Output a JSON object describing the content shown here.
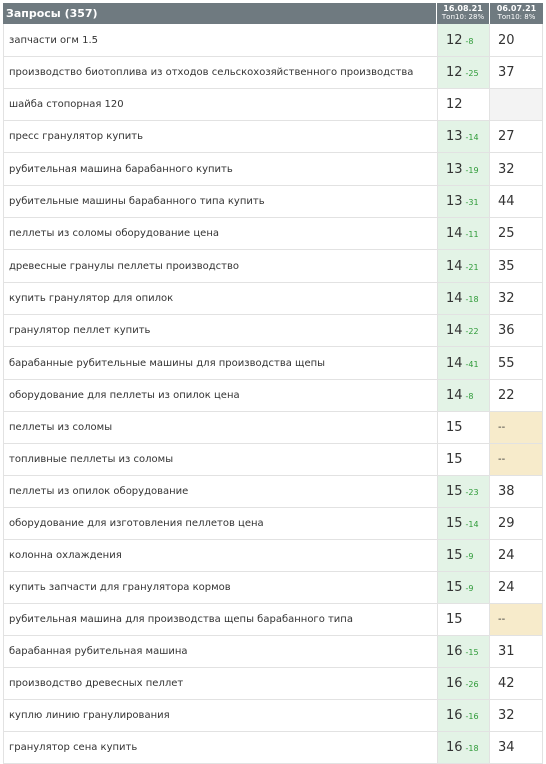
{
  "header": {
    "queries_label": "Запросы (357)",
    "date1": "16.08.21",
    "top1": "Топ10: 28%",
    "date2": "06.07.21",
    "top2": "Топ10: 8%"
  },
  "colors": {
    "header_bg": "#6f7a80",
    "position_bg": "#e3f3e6",
    "delta_green": "#2e9a38",
    "dash_bg": "#f7ebcb"
  },
  "rows": [
    {
      "query": "запчасти огм 1.5",
      "pos": "12",
      "delta": "-8",
      "prev": "20"
    },
    {
      "query": "производство биотоплива из отходов сельскохозяйственного производства",
      "pos": "12",
      "delta": "-25",
      "prev": "37"
    },
    {
      "query": "шайба стопорная 120",
      "pos": "12",
      "delta": "",
      "prev": ""
    },
    {
      "query": "пресс гранулятор купить",
      "pos": "13",
      "delta": "-14",
      "prev": "27"
    },
    {
      "query": "рубительная машина барабанного купить",
      "pos": "13",
      "delta": "-19",
      "prev": "32"
    },
    {
      "query": "рубительные машины барабанного типа купить",
      "pos": "13",
      "delta": "-31",
      "prev": "44"
    },
    {
      "query": "пеллеты из соломы оборудование цена",
      "pos": "14",
      "delta": "-11",
      "prev": "25"
    },
    {
      "query": "древесные гранулы пеллеты производство",
      "pos": "14",
      "delta": "-21",
      "prev": "35"
    },
    {
      "query": "купить гранулятор для опилок",
      "pos": "14",
      "delta": "-18",
      "prev": "32"
    },
    {
      "query": "гранулятор пеллет купить",
      "pos": "14",
      "delta": "-22",
      "prev": "36"
    },
    {
      "query": "барабанные рубительные машины для производства щепы",
      "pos": "14",
      "delta": "-41",
      "prev": "55"
    },
    {
      "query": "оборудование для пеллеты из опилок цена",
      "pos": "14",
      "delta": "-8",
      "prev": "22"
    },
    {
      "query": "пеллеты из соломы",
      "pos": "15",
      "delta": "",
      "prev": "--"
    },
    {
      "query": "топливные пеллеты из соломы",
      "pos": "15",
      "delta": "",
      "prev": "--"
    },
    {
      "query": "пеллеты из опилок оборудование",
      "pos": "15",
      "delta": "-23",
      "prev": "38"
    },
    {
      "query": "оборудование для изготовления пеллетов цена",
      "pos": "15",
      "delta": "-14",
      "prev": "29"
    },
    {
      "query": "колонна охлаждения",
      "pos": "15",
      "delta": "-9",
      "prev": "24"
    },
    {
      "query": "купить запчасти для гранулятора кормов",
      "pos": "15",
      "delta": "-9",
      "prev": "24"
    },
    {
      "query": "рубительная машина для производства щепы барабанного типа",
      "pos": "15",
      "delta": "",
      "prev": "--"
    },
    {
      "query": "барабанная рубительная машина",
      "pos": "16",
      "delta": "-15",
      "prev": "31"
    },
    {
      "query": "производство древесных пеллет",
      "pos": "16",
      "delta": "-26",
      "prev": "42"
    },
    {
      "query": "куплю линию гранулирования",
      "pos": "16",
      "delta": "-16",
      "prev": "32"
    },
    {
      "query": "гранулятор сена купить",
      "pos": "16",
      "delta": "-18",
      "prev": "34"
    }
  ]
}
